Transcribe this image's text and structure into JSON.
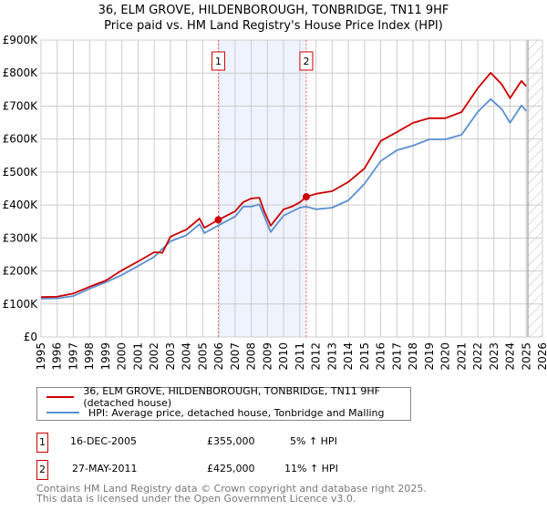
{
  "title_line1": "36, ELM GROVE, HILDENBOROUGH, TONBRIDGE, TN11 9HF",
  "title_line2": "Price paid vs. HM Land Registry's House Price Index (HPI)",
  "chart_data": {
    "type": "line",
    "title": "36, ELM GROVE, HILDENBOROUGH, TONBRIDGE, TN11 9HF — Price paid vs. HM Land Registry's House Price Index (HPI)",
    "xlabel": "",
    "ylabel": "",
    "xlim": [
      1995,
      2026
    ],
    "ylim": [
      0,
      900000
    ],
    "x_ticks": [
      "1995",
      "1996",
      "1997",
      "1998",
      "1999",
      "2000",
      "2001",
      "2002",
      "2003",
      "2004",
      "2005",
      "2006",
      "2007",
      "2008",
      "2009",
      "2010",
      "2011",
      "2012",
      "2013",
      "2014",
      "2015",
      "2016",
      "2017",
      "2018",
      "2019",
      "2020",
      "2021",
      "2022",
      "2023",
      "2024",
      "2025",
      "2026"
    ],
    "y_ticks": [
      {
        "v": 0,
        "label": "£0"
      },
      {
        "v": 100000,
        "label": "£100K"
      },
      {
        "v": 200000,
        "label": "£200K"
      },
      {
        "v": 300000,
        "label": "£300K"
      },
      {
        "v": 400000,
        "label": "£400K"
      },
      {
        "v": 500000,
        "label": "£500K"
      },
      {
        "v": 600000,
        "label": "£600K"
      },
      {
        "v": 700000,
        "label": "£700K"
      },
      {
        "v": 800000,
        "label": "£800K"
      },
      {
        "v": 900000,
        "label": "£900K"
      }
    ],
    "grid": true,
    "legend_placement": "below",
    "series": [
      {
        "name": "36, ELM GROVE, HILDENBOROUGH, TONBRIDGE, TN11 9HF (detached house)",
        "color": "#cc0000",
        "x": [
          1995,
          1996,
          1997,
          1998,
          1999,
          2000,
          2001,
          2002,
          2002.5,
          2003,
          2004,
          2004.8,
          2005.1,
          2005.96,
          2007,
          2007.5,
          2008,
          2008.5,
          2008.8,
          2009.2,
          2010,
          2010.5,
          2011,
          2011.4,
          2012,
          2013,
          2014,
          2015,
          2016,
          2017,
          2018,
          2019,
          2020,
          2021,
          2022,
          2022.8,
          2023.5,
          2024,
          2024.7,
          2025
        ],
        "y": [
          121000,
          122000,
          132000,
          152000,
          171000,
          202000,
          229000,
          257000,
          255000,
          304000,
          326000,
          359000,
          331000,
          355000,
          381000,
          409000,
          420000,
          422000,
          381000,
          337000,
          387000,
          395000,
          408000,
          425000,
          434000,
          442000,
          470000,
          511000,
          594000,
          621000,
          649000,
          663000,
          663000,
          682000,
          754000,
          801000,
          765000,
          724000,
          776000,
          760000
        ]
      },
      {
        "name": "HPI: Average price, detached house, Tonbridge and Malling",
        "color": "#5b8fd0",
        "x": [
          1995,
          1996,
          1997,
          1998,
          1999,
          2000,
          2001,
          2002,
          2003,
          2004,
          2004.8,
          2005.1,
          2005.96,
          2007,
          2007.5,
          2008,
          2008.5,
          2009.2,
          2010,
          2011,
          2011.4,
          2012,
          2013,
          2014,
          2015,
          2016,
          2017,
          2018,
          2019,
          2020,
          2021,
          2022,
          2022.8,
          2023.5,
          2024,
          2024.7,
          2025
        ],
        "y": [
          116000,
          117000,
          124000,
          146000,
          166000,
          188000,
          215000,
          243000,
          290000,
          309000,
          342000,
          315000,
          338000,
          365000,
          395000,
          395000,
          402000,
          318000,
          368000,
          392000,
          395000,
          387000,
          392000,
          414000,
          464000,
          533000,
          566000,
          580000,
          599000,
          599000,
          613000,
          682000,
          721000,
          690000,
          649000,
          702000,
          685000
        ]
      }
    ],
    "annotations": [
      {
        "label": "1",
        "x": 2005.96,
        "y": 355000
      },
      {
        "label": "2",
        "x": 2011.4,
        "y": 425000
      }
    ],
    "shaded_range": [
      2005.96,
      2011.4
    ],
    "forecast_hatch_from": 2025.1
  },
  "legend": {
    "property": "36, ELM GROVE, HILDENBOROUGH, TONBRIDGE, TN11 9HF (detached house)",
    "hpi": "HPI: Average price, detached house, Tonbridge and Malling"
  },
  "sales": [
    {
      "num": "1",
      "date": "16-DEC-2005",
      "price": "£355,000",
      "hpi": "5% ↑ HPI"
    },
    {
      "num": "2",
      "date": "27-MAY-2011",
      "price": "£425,000",
      "hpi": "11% ↑ HPI"
    }
  ],
  "footer_line1": "Contains HM Land Registry data © Crown copyright and database right 2025.",
  "footer_line2": "This data is licensed under the Open Government Licence v3.0."
}
